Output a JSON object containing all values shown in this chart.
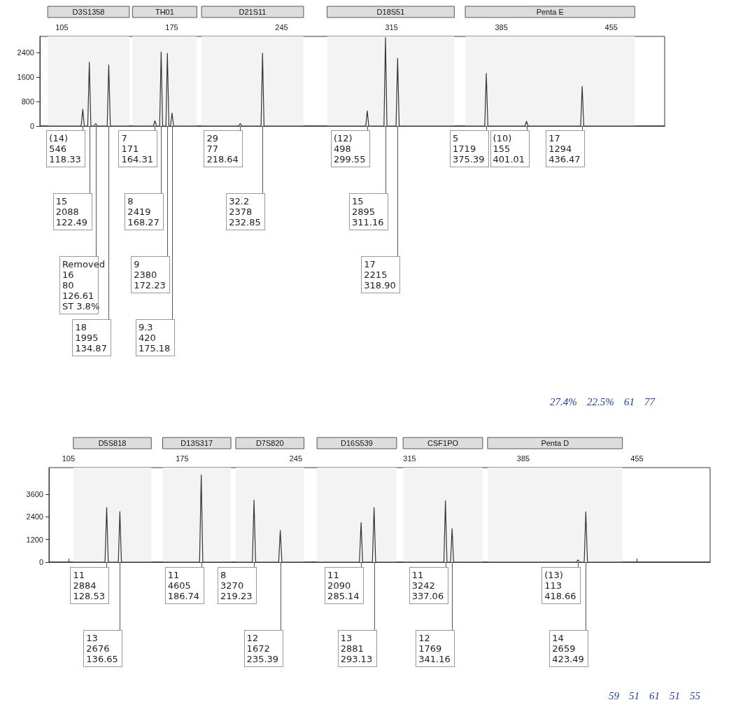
{
  "chart_data": [
    {
      "type": "line",
      "xlim": [
        91,
        489
      ],
      "xticks": [
        105,
        175,
        245,
        315,
        385,
        455
      ],
      "ylim": [
        0,
        2930
      ],
      "yticks": [
        0,
        800,
        1600,
        2400
      ],
      "grid": false,
      "marker": "none",
      "line_style": "solid",
      "bands": [
        {
          "axis": "x",
          "from": 96,
          "to": 148,
          "label": "D3S1358"
        },
        {
          "axis": "x",
          "from": 150,
          "to": 191,
          "label": "TH01"
        },
        {
          "axis": "x",
          "from": 194,
          "to": 259,
          "label": "D21S11"
        },
        {
          "axis": "x",
          "from": 274,
          "to": 355,
          "label": "D18S51"
        },
        {
          "axis": "x",
          "from": 362,
          "to": 470,
          "label": "Penta E"
        }
      ],
      "series": [
        {
          "color": "#333333",
          "x": [
            91,
            117.3,
            118.33,
            119.3,
            121.5,
            122.49,
            123.5,
            125.6,
            126.61,
            127.6,
            133.9,
            134.87,
            135.9,
            163.3,
            164.31,
            165.3,
            167.3,
            168.27,
            169.2,
            171.3,
            172.23,
            173.2,
            174.2,
            175.18,
            176.2,
            217.6,
            218.64,
            219.6,
            231.9,
            232.85,
            233.8,
            298.6,
            299.55,
            300.5,
            310.2,
            311.16,
            312.1,
            317.9,
            318.9,
            319.9,
            374.4,
            375.39,
            376.4,
            400,
            401.01,
            402,
            435.5,
            436.47,
            437.5,
            489
          ],
          "values": [
            0,
            0,
            546,
            0,
            0,
            2088,
            0,
            0,
            80,
            0,
            0,
            1995,
            0,
            0,
            171,
            0,
            0,
            2419,
            0,
            0,
            2380,
            0,
            0,
            420,
            0,
            0,
            77,
            0,
            0,
            2378,
            0,
            0,
            498,
            0,
            0,
            2895,
            0,
            0,
            2215,
            0,
            0,
            1719,
            0,
            0,
            155,
            0,
            0,
            1294,
            0,
            0
          ]
        }
      ],
      "annotations": [
        {
          "text": "(14)\n546\n118.33",
          "x": 118.33,
          "y": 0
        },
        {
          "text": "15\n2088\n122.49",
          "x": 122.49,
          "y": 0
        },
        {
          "text": "Removed\n16\n80\n126.61\nST 3.8%",
          "x": 126.61,
          "y": 0
        },
        {
          "text": "18\n1995\n134.87",
          "x": 134.87,
          "y": 0
        },
        {
          "text": "7\n171\n164.31",
          "x": 164.31,
          "y": 0
        },
        {
          "text": "8\n2419\n168.27",
          "x": 168.27,
          "y": 0
        },
        {
          "text": "9\n2380\n172.23",
          "x": 172.23,
          "y": 0
        },
        {
          "text": "9.3\n420\n175.18",
          "x": 175.18,
          "y": 0
        },
        {
          "text": "29\n77\n218.64",
          "x": 218.64,
          "y": 0
        },
        {
          "text": "32.2\n2378\n232.85",
          "x": 232.85,
          "y": 0
        },
        {
          "text": "(12)\n498\n299.55",
          "x": 299.55,
          "y": 0
        },
        {
          "text": "15\n2895\n311.16",
          "x": 311.16,
          "y": 0
        },
        {
          "text": "17\n2215\n318.90",
          "x": 318.9,
          "y": 0
        },
        {
          "text": "5\n1719\n375.39",
          "x": 375.39,
          "y": 0
        },
        {
          "text": "(10)\n155\n401.01",
          "x": 401.01,
          "y": 0
        },
        {
          "text": "17\n1294\n436.47",
          "x": 436.47,
          "y": 0
        },
        "27.4%",
        "22.5%",
        "61",
        "77"
      ]
    },
    {
      "type": "line",
      "xlim": [
        93,
        500
      ],
      "xticks": [
        105,
        175,
        245,
        315,
        385,
        455
      ],
      "ylim": [
        0,
        5000
      ],
      "yticks": [
        0,
        1200,
        2400,
        3600
      ],
      "grid": false,
      "marker": "none",
      "line_style": "solid",
      "bands": [
        {
          "axis": "x",
          "from": 108,
          "to": 156,
          "label": "D5S818"
        },
        {
          "axis": "x",
          "from": 163,
          "to": 205,
          "label": "D13S317"
        },
        {
          "axis": "x",
          "from": 208,
          "to": 250,
          "label": "D7S820"
        },
        {
          "axis": "x",
          "from": 258,
          "to": 307,
          "label": "D16S539"
        },
        {
          "axis": "x",
          "from": 311,
          "to": 360,
          "label": "CSF1PO"
        },
        {
          "axis": "x",
          "from": 363,
          "to": 446,
          "label": "Penta D"
        }
      ],
      "series": [
        {
          "color": "#333333",
          "x": [
            93,
            127.5,
            128.53,
            129.5,
            135.7,
            136.65,
            137.6,
            185.7,
            186.74,
            187.7,
            218.2,
            219.23,
            220.2,
            234.4,
            235.39,
            236.4,
            284.1,
            285.14,
            286.1,
            292.1,
            293.13,
            294.1,
            336.1,
            337.06,
            338,
            340.2,
            341.16,
            342.1,
            417.7,
            418.66,
            419.6,
            422.5,
            423.49,
            424.5,
            500
          ],
          "values": [
            0,
            0,
            2884,
            0,
            0,
            2676,
            0,
            0,
            4605,
            0,
            0,
            3270,
            0,
            0,
            1672,
            0,
            0,
            2090,
            0,
            0,
            2881,
            0,
            0,
            3242,
            0,
            0,
            1769,
            0,
            0,
            113,
            0,
            0,
            2659,
            0,
            0
          ]
        }
      ],
      "annotations": [
        {
          "text": "11\n2884\n128.53",
          "x": 128.53,
          "y": 0
        },
        {
          "text": "13\n2676\n136.65",
          "x": 136.65,
          "y": 0
        },
        {
          "text": "11\n4605\n186.74",
          "x": 186.74,
          "y": 0
        },
        {
          "text": "8\n3270\n219.23",
          "x": 219.23,
          "y": 0
        },
        {
          "text": "12\n1672\n235.39",
          "x": 235.39,
          "y": 0
        },
        {
          "text": "11\n2090\n285.14",
          "x": 285.14,
          "y": 0
        },
        {
          "text": "13\n2881\n293.13",
          "x": 293.13,
          "y": 0
        },
        {
          "text": "11\n3242\n337.06",
          "x": 337.06,
          "y": 0
        },
        {
          "text": "12\n1769\n341.16",
          "x": 341.16,
          "y": 0
        },
        {
          "text": "(13)\n113\n418.66",
          "x": 418.66,
          "y": 0
        },
        {
          "text": "14\n2659\n423.49",
          "x": 423.49,
          "y": 0
        },
        "59",
        "51",
        "61",
        "51",
        "55"
      ]
    }
  ]
}
